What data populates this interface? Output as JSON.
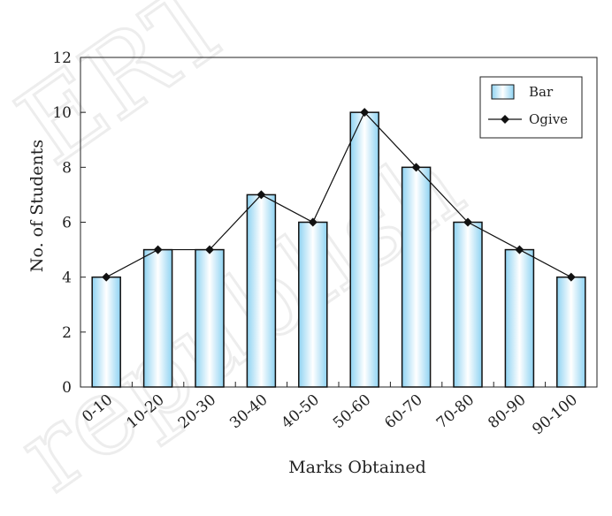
{
  "chart_data": {
    "type": "bar",
    "categories": [
      "0-10",
      "10-20",
      "20-30",
      "30-40",
      "40-50",
      "50-60",
      "60-70",
      "70-80",
      "80-90",
      "90-100"
    ],
    "series": [
      {
        "name": "Bar",
        "type": "bar",
        "values": [
          4,
          5,
          5,
          7,
          6,
          10,
          8,
          6,
          5,
          4
        ]
      },
      {
        "name": "Ogive",
        "type": "line",
        "values": [
          4,
          5,
          5,
          7,
          6,
          10,
          8,
          6,
          5,
          4
        ]
      }
    ],
    "title": "",
    "xlabel": "Marks Obtained",
    "ylabel": "No. of Students",
    "ylim": [
      0,
      12
    ],
    "yticks": [
      0,
      2,
      4,
      6,
      8,
      10,
      12
    ],
    "grid": false,
    "legend_position": "top-right",
    "colors": {
      "bar_center": "#ffffff",
      "bar_edge": "#8fd3f2",
      "bar_stroke": "#111111",
      "line": "#111111"
    }
  },
  "watermark": {
    "line1": "ERT",
    "line2": "republish"
  }
}
